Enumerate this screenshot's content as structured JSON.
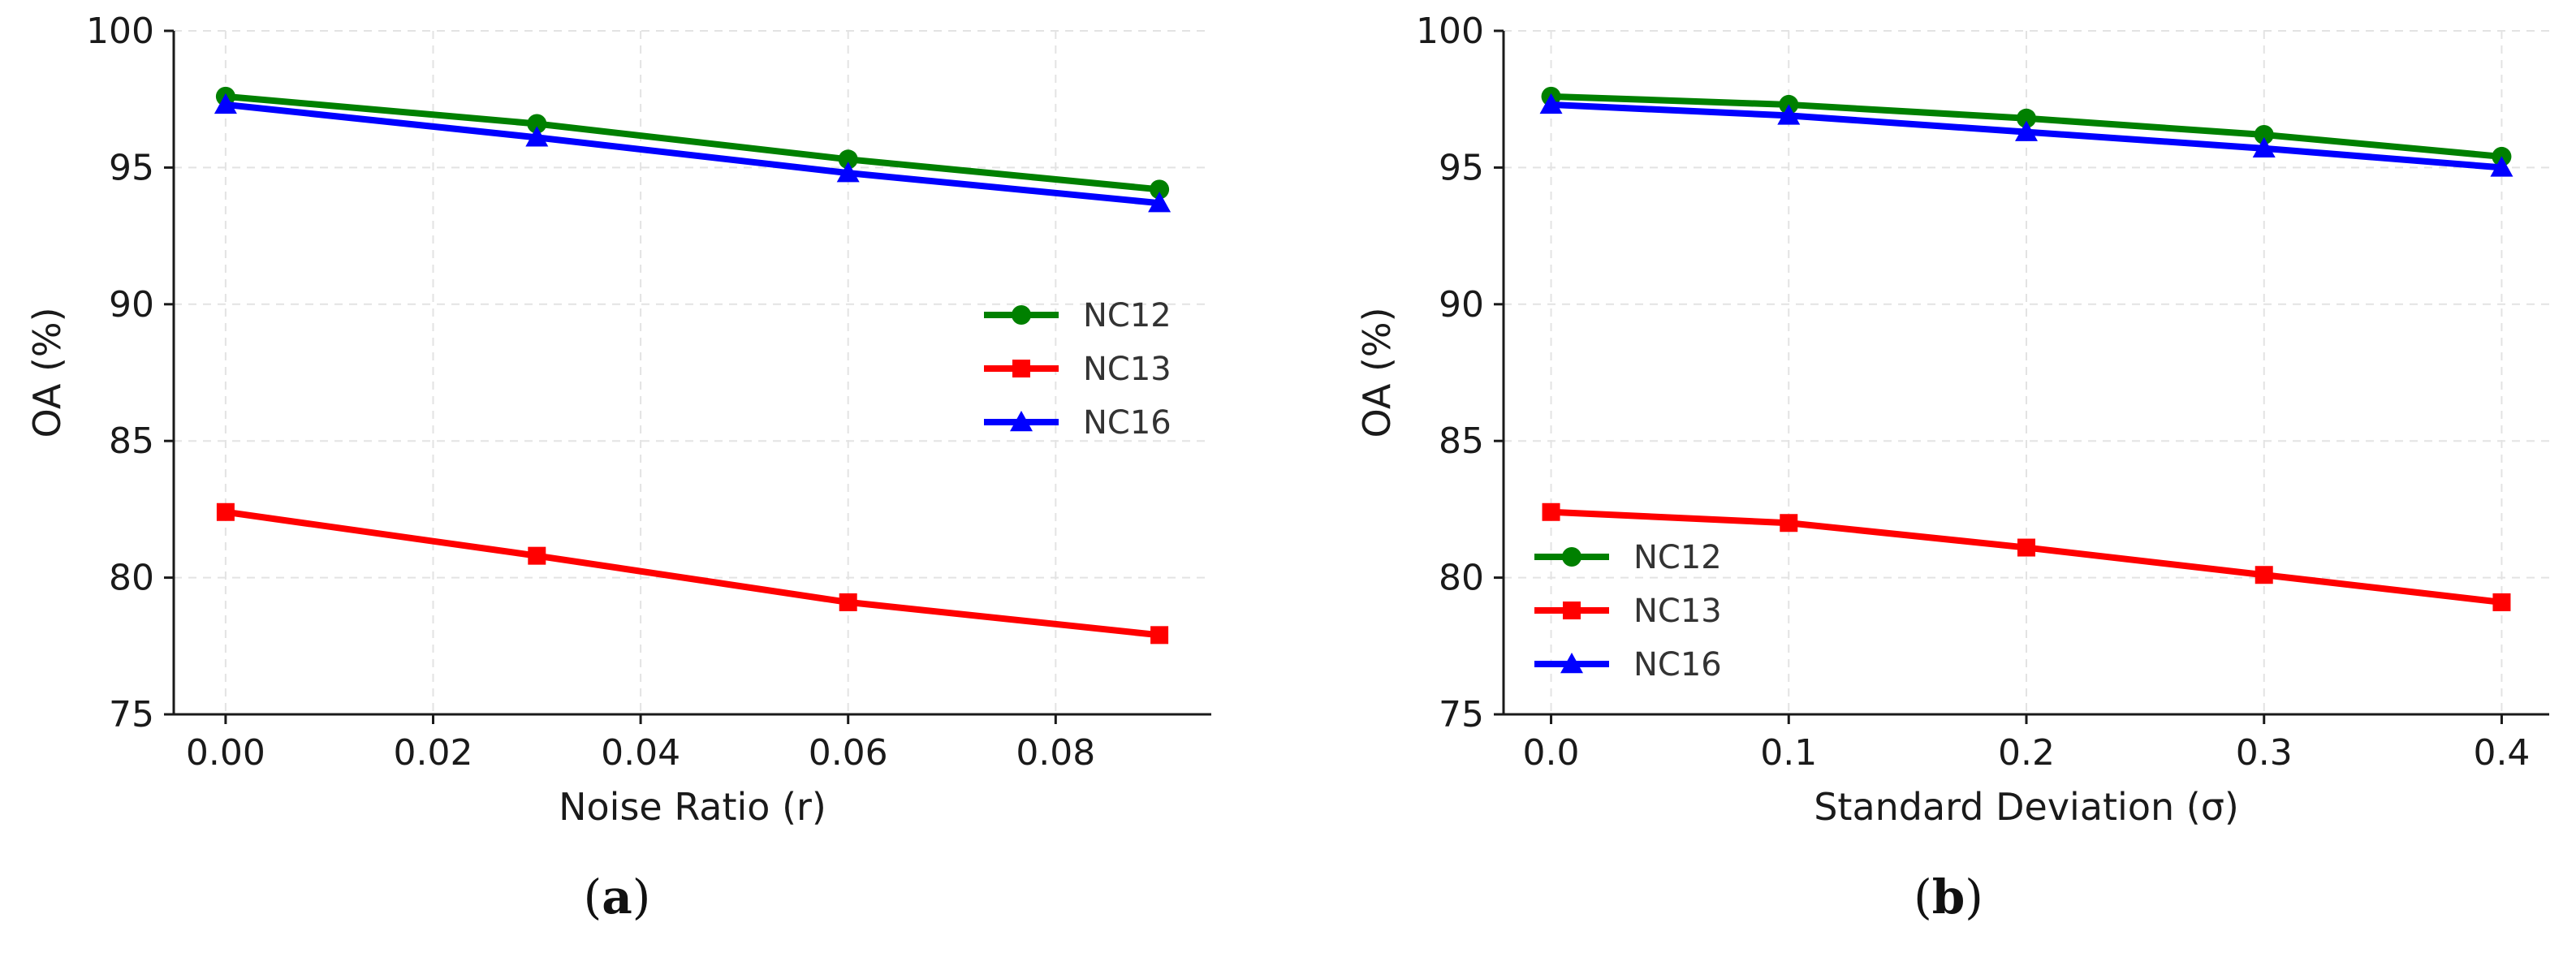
{
  "chart_data": [
    {
      "type": "line",
      "panel_label": "(a)",
      "xlabel": "Noise Ratio (r)",
      "ylabel": "OA (%)",
      "xlim": [
        -0.005,
        0.095
      ],
      "ylim": [
        75,
        100
      ],
      "xticks": [
        0.0,
        0.02,
        0.04,
        0.06,
        0.08
      ],
      "xtick_labels": [
        "0.00",
        "0.02",
        "0.04",
        "0.06",
        "0.08"
      ],
      "yticks": [
        75,
        80,
        85,
        90,
        95,
        100
      ],
      "ytick_labels": [
        "75",
        "80",
        "85",
        "90",
        "95",
        "100"
      ],
      "grid": true,
      "legend_position": "center-right",
      "x": [
        0.0,
        0.03,
        0.06,
        0.09
      ],
      "series": [
        {
          "name": "NC12",
          "color": "#008000",
          "marker": "circle",
          "values": [
            97.6,
            96.6,
            95.3,
            94.2
          ]
        },
        {
          "name": "NC13",
          "color": "#ff0000",
          "marker": "square",
          "values": [
            82.4,
            80.8,
            79.1,
            77.9
          ]
        },
        {
          "name": "NC16",
          "color": "#0000ff",
          "marker": "triangle",
          "values": [
            97.3,
            96.1,
            94.8,
            93.7
          ]
        }
      ]
    },
    {
      "type": "line",
      "panel_label": "(b)",
      "xlabel": "Standard Deviation (σ)",
      "ylabel": "OA (%)",
      "xlim": [
        -0.02,
        0.42
      ],
      "ylim": [
        75,
        100
      ],
      "xticks": [
        0.0,
        0.1,
        0.2,
        0.3,
        0.4
      ],
      "xtick_labels": [
        "0.0",
        "0.1",
        "0.2",
        "0.3",
        "0.4"
      ],
      "yticks": [
        75,
        80,
        85,
        90,
        95,
        100
      ],
      "ytick_labels": [
        "75",
        "80",
        "85",
        "90",
        "95",
        "100"
      ],
      "grid": true,
      "legend_position": "center-left",
      "x": [
        0.0,
        0.1,
        0.2,
        0.3,
        0.4
      ],
      "series": [
        {
          "name": "NC12",
          "color": "#008000",
          "marker": "circle",
          "values": [
            97.6,
            97.3,
            96.8,
            96.2,
            95.4
          ]
        },
        {
          "name": "NC13",
          "color": "#ff0000",
          "marker": "square",
          "values": [
            82.4,
            82.0,
            81.1,
            80.1,
            79.1
          ]
        },
        {
          "name": "NC16",
          "color": "#0000ff",
          "marker": "triangle",
          "values": [
            97.3,
            96.9,
            96.3,
            95.7,
            95.0
          ]
        }
      ]
    }
  ]
}
